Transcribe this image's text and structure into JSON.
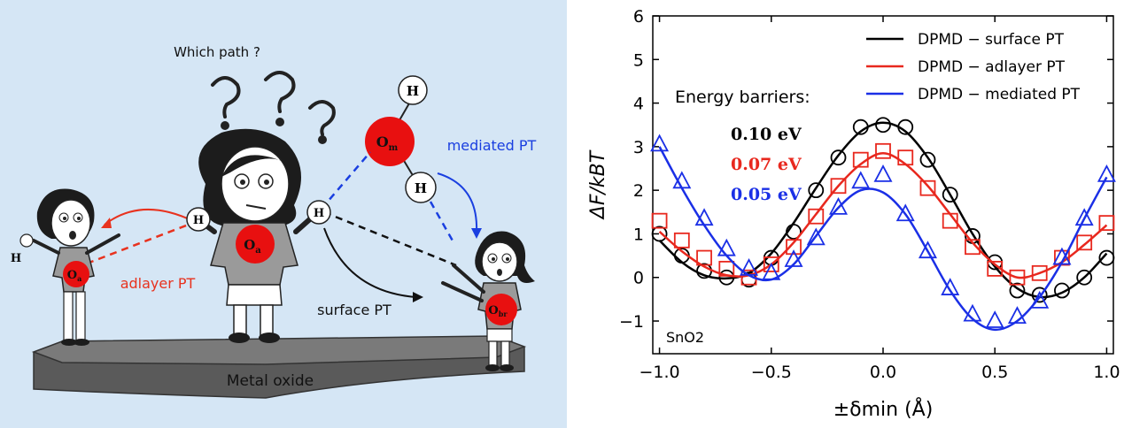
{
  "scene": {
    "question": "Which path ?",
    "platform_label": "Metal oxide",
    "atoms": {
      "H": "H",
      "Om_main": "O",
      "Om_sub": "m",
      "Oa_main": "O",
      "Oa_sub": "a",
      "Obr_main": "O",
      "Obr_sub": "br"
    },
    "paths": {
      "adlayer": "adlayer PT",
      "surface": "surface PT",
      "mediated": "mediated PT"
    },
    "colors": {
      "background": "#d5e6f5",
      "adlayer": "#e8321e",
      "surface": "#111111",
      "mediated": "#1a3fe0",
      "atom": "#e81010"
    }
  },
  "chart_data": {
    "type": "line+scatter",
    "xlabel": "±δmin (Å)",
    "ylabel": "ΔF/kBT",
    "xlim": [
      -1.03,
      1.03
    ],
    "ylim": [
      -1.75,
      6
    ],
    "xticks": [
      -1.0,
      -0.5,
      0.0,
      0.5,
      1.0
    ],
    "xtick_labels": [
      "−1.0",
      "−0.5",
      "0.0",
      "0.5",
      "1.0"
    ],
    "yticks": [
      -1,
      0,
      1,
      2,
      3,
      4,
      5,
      6
    ],
    "ytick_labels": [
      "−1",
      "0",
      "1",
      "2",
      "3",
      "4",
      "5",
      "6"
    ],
    "legend_position": "top-right",
    "annotation_title": "Energy barriers:",
    "material_label": "SnO2",
    "series": [
      {
        "name": "DPMD − surface PT",
        "color": "#000000",
        "marker": "circle",
        "barrier": "0.10 eV",
        "points_x": [
          -1.0,
          -0.9,
          -0.8,
          -0.7,
          -0.6,
          -0.5,
          -0.4,
          -0.3,
          -0.2,
          -0.1,
          0.0,
          0.1,
          0.2,
          0.3,
          0.4,
          0.5,
          0.6,
          0.7,
          0.8,
          0.9,
          1.0
        ],
        "points_y": [
          1.0,
          0.5,
          0.15,
          0.0,
          -0.05,
          0.45,
          1.05,
          2.0,
          2.75,
          3.45,
          3.5,
          3.45,
          2.7,
          1.9,
          0.95,
          0.35,
          -0.3,
          -0.4,
          -0.3,
          0.0,
          0.45
        ],
        "curve_x": [
          -1.0,
          -0.9,
          -0.8,
          -0.7,
          -0.6,
          -0.5,
          -0.4,
          -0.3,
          -0.2,
          -0.1,
          0.0,
          0.1,
          0.2,
          0.3,
          0.4,
          0.5,
          0.6,
          0.7,
          0.8,
          0.9,
          1.0
        ],
        "curve_y": [
          0.85,
          0.35,
          0.05,
          -0.02,
          0.1,
          0.55,
          1.25,
          2.05,
          2.8,
          3.35,
          3.55,
          3.35,
          2.75,
          1.9,
          1.0,
          0.25,
          -0.25,
          -0.45,
          -0.35,
          0.0,
          0.55
        ]
      },
      {
        "name": "DPMD − adlayer PT",
        "color": "#e8281e",
        "marker": "square",
        "barrier": "0.07 eV",
        "points_x": [
          -1.0,
          -0.9,
          -0.8,
          -0.7,
          -0.6,
          -0.5,
          -0.4,
          -0.3,
          -0.2,
          -0.1,
          0.0,
          0.1,
          0.2,
          0.3,
          0.4,
          0.5,
          0.6,
          0.7,
          0.8,
          0.9,
          1.0
        ],
        "points_y": [
          1.3,
          0.85,
          0.45,
          0.2,
          0.0,
          0.3,
          0.7,
          1.4,
          2.1,
          2.7,
          2.9,
          2.75,
          2.05,
          1.3,
          0.7,
          0.2,
          0.0,
          0.1,
          0.45,
          0.8,
          1.25
        ],
        "curve_x": [
          -1.0,
          -0.9,
          -0.8,
          -0.7,
          -0.6,
          -0.5,
          -0.4,
          -0.3,
          -0.2,
          -0.1,
          0.0,
          0.1,
          0.2,
          0.3,
          0.4,
          0.5,
          0.6,
          0.7,
          0.8,
          0.9,
          1.0
        ],
        "curve_y": [
          1.05,
          0.6,
          0.25,
          0.05,
          0.05,
          0.3,
          0.8,
          1.45,
          2.1,
          2.6,
          2.85,
          2.6,
          2.1,
          1.45,
          0.8,
          0.3,
          0.0,
          0.1,
          0.35,
          0.75,
          1.2
        ]
      },
      {
        "name": "DPMD − mediated PT",
        "color": "#1a2fe6",
        "marker": "triangle",
        "barrier": "0.05 eV",
        "points_x": [
          -1.0,
          -0.9,
          -0.8,
          -0.7,
          -0.6,
          -0.5,
          -0.4,
          -0.3,
          -0.2,
          -0.1,
          0.0,
          0.1,
          0.2,
          0.3,
          0.4,
          0.5,
          0.6,
          0.7,
          0.8,
          0.9,
          1.0
        ],
        "points_y": [
          3.05,
          2.2,
          1.35,
          0.65,
          0.2,
          0.1,
          0.4,
          0.9,
          1.6,
          2.2,
          2.35,
          1.45,
          0.6,
          -0.25,
          -0.85,
          -1.0,
          -0.9,
          -0.55,
          0.45,
          1.35,
          2.35
        ],
        "curve_x": [
          -1.0,
          -0.9,
          -0.8,
          -0.7,
          -0.6,
          -0.5,
          -0.4,
          -0.3,
          -0.2,
          -0.1,
          0.0,
          0.1,
          0.2,
          0.3,
          0.4,
          0.5,
          0.6,
          0.7,
          0.8,
          0.9,
          1.0
        ],
        "curve_y": [
          3.0,
          2.05,
          1.2,
          0.5,
          0.05,
          -0.05,
          0.3,
          0.95,
          1.6,
          2.0,
          1.95,
          1.45,
          0.6,
          -0.3,
          -0.95,
          -1.2,
          -1.0,
          -0.45,
          0.35,
          1.35,
          2.3
        ]
      }
    ]
  }
}
